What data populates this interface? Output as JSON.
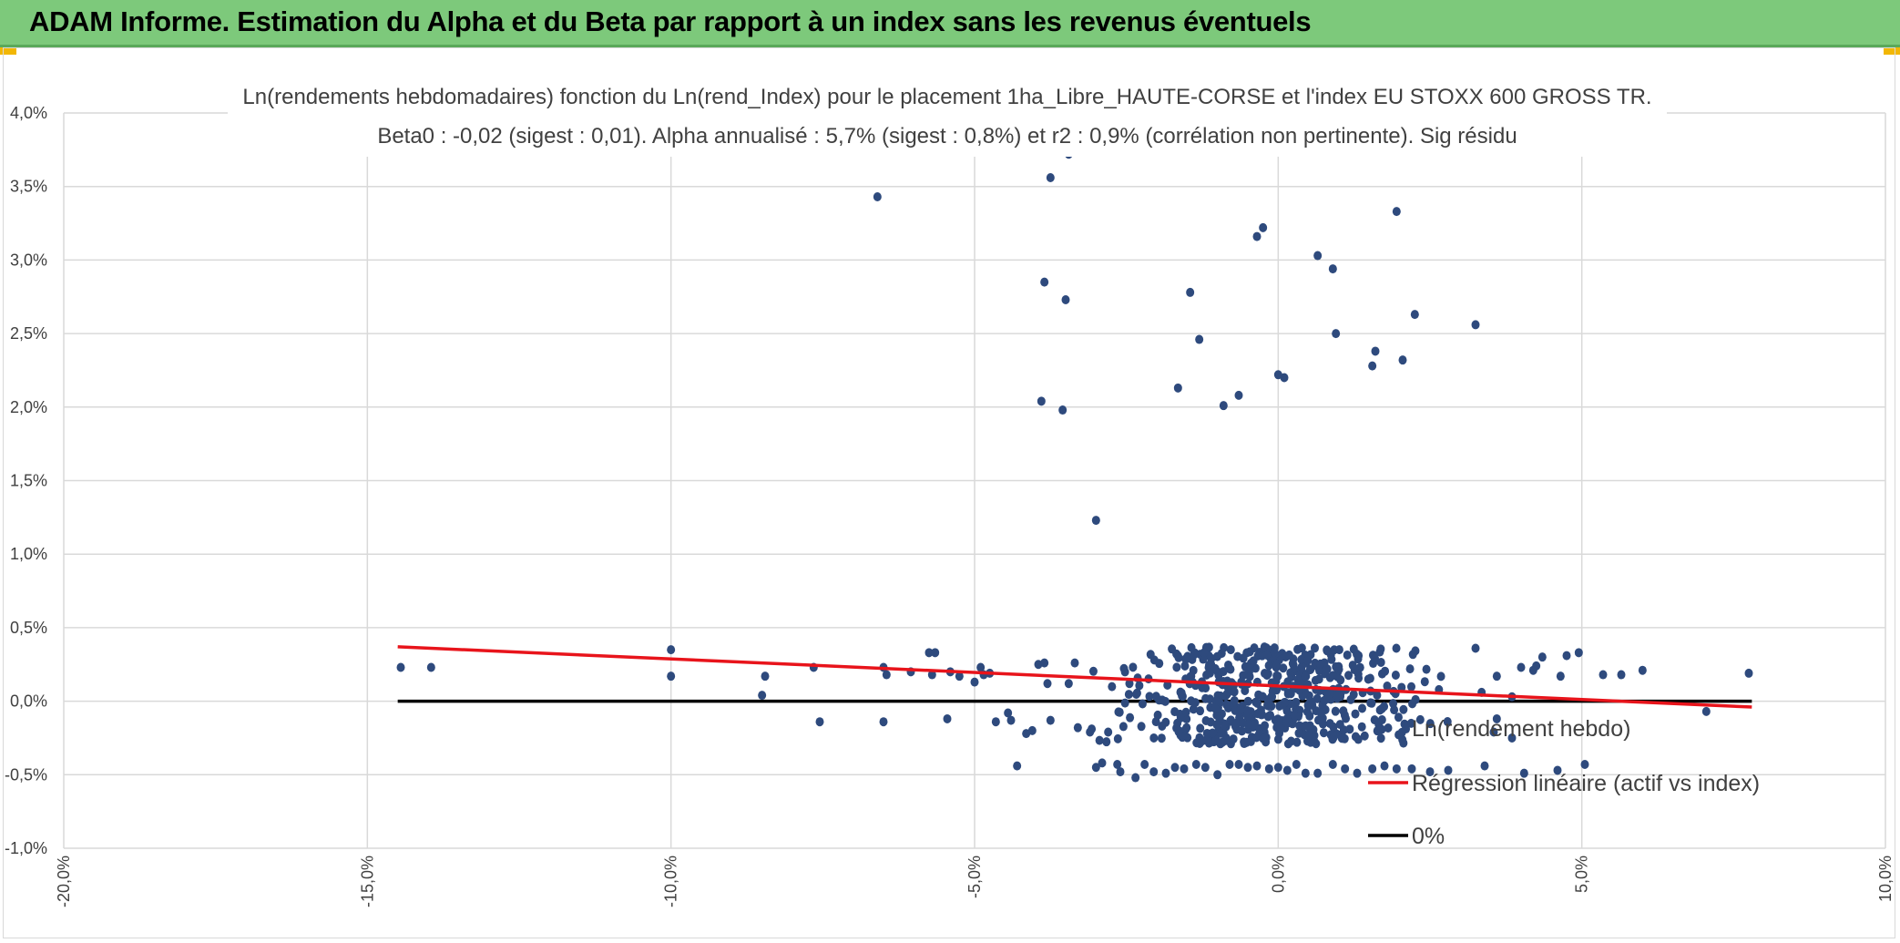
{
  "header": {
    "title": "ADAM Informe. Estimation du Alpha et du Beta par rapport à un index sans les revenus éventuels"
  },
  "colors": {
    "header_bg": "#7dc97b",
    "points": "#2e4a7d",
    "regression": "#e8141b",
    "zero_line": "#000000",
    "grid": "#d9d9d9"
  },
  "chart_data": {
    "type": "scatter",
    "title_line1": "Ln(rendements hebdomadaires) fonction du Ln(rend_Index) pour le placement 1ha_Libre_HAUTE-CORSE et l'index EU STOXX 600 GROSS TR.",
    "title_line2": "Beta0 : -0,02 (sigest : 0,01). Alpha annualisé : 5,7% (sigest : 0,8%) et r2 : 0,9% (corrélation non pertinente). Sig résidu",
    "xlabel": "",
    "ylabel": "",
    "xlim": [
      -0.2,
      0.1
    ],
    "ylim": [
      -0.01,
      0.04
    ],
    "x_ticks": [
      "-20,0%",
      "-15,0%",
      "-10,0%",
      "-5,0%",
      "0,0%",
      "5,0%",
      "10,0%"
    ],
    "y_ticks": [
      "-1,0%",
      "-0,5%",
      "0,0%",
      "0,5%",
      "1,0%",
      "1,5%",
      "2,0%",
      "2,5%",
      "3,0%",
      "3,5%",
      "4,0%"
    ],
    "grid": true,
    "legend_position": "bottom-right",
    "legend": [
      "Ln(rendement hebdo)",
      "Régression linéaire (actif vs index)",
      "0%"
    ],
    "series": [
      {
        "name": "Ln(rendement hebdo)",
        "type": "scatter",
        "points": [
          [
            -0.066,
            0.0343
          ],
          [
            -0.0375,
            0.0356
          ],
          [
            -0.0345,
            0.0372
          ],
          [
            -0.0385,
            0.0285
          ],
          [
            -0.035,
            0.0273
          ],
          [
            -0.039,
            0.0204
          ],
          [
            -0.0355,
            0.0198
          ],
          [
            -0.03,
            0.0123
          ],
          [
            -0.0145,
            0.0278
          ],
          [
            -0.013,
            0.0246
          ],
          [
            -0.0165,
            0.0213
          ],
          [
            -0.009,
            0.0201
          ],
          [
            -0.0065,
            0.0208
          ],
          [
            -0.0035,
            0.0316
          ],
          [
            -0.0025,
            0.0322
          ],
          [
            0.0,
            0.0222
          ],
          [
            0.001,
            0.022
          ],
          [
            0.0065,
            0.0303
          ],
          [
            0.009,
            0.0294
          ],
          [
            0.0095,
            0.025
          ],
          [
            0.0155,
            0.0228
          ],
          [
            0.016,
            0.0238
          ],
          [
            0.0195,
            0.0333
          ],
          [
            0.0205,
            0.0232
          ],
          [
            0.0225,
            0.0263
          ],
          [
            0.0325,
            0.0256
          ],
          [
            -0.1445,
            0.0023
          ],
          [
            -0.1395,
            0.0023
          ],
          [
            -0.1,
            0.0035
          ],
          [
            -0.1,
            0.0017
          ],
          [
            -0.0845,
            0.0017
          ],
          [
            -0.085,
            0.0004
          ],
          [
            -0.0765,
            0.0023
          ],
          [
            -0.0755,
            -0.0014
          ],
          [
            -0.065,
            0.0023
          ],
          [
            -0.0645,
            0.0018
          ],
          [
            -0.065,
            -0.0014
          ],
          [
            -0.0605,
            0.002
          ],
          [
            -0.0575,
            0.0033
          ],
          [
            -0.0565,
            0.0033
          ],
          [
            -0.057,
            0.0018
          ],
          [
            -0.0545,
            -0.0012
          ],
          [
            -0.054,
            0.002
          ],
          [
            -0.0525,
            0.0017
          ],
          [
            -0.05,
            0.0013
          ],
          [
            -0.049,
            0.0023
          ],
          [
            -0.0485,
            0.0018
          ],
          [
            -0.0475,
            0.0019
          ],
          [
            -0.0465,
            -0.0014
          ],
          [
            -0.0445,
            -0.0008
          ],
          [
            -0.044,
            -0.0013
          ],
          [
            -0.043,
            -0.0044
          ],
          [
            -0.0415,
            -0.0022
          ],
          [
            -0.0405,
            -0.002
          ],
          [
            -0.0395,
            0.0025
          ],
          [
            -0.0385,
            0.0026
          ],
          [
            -0.038,
            0.0012
          ],
          [
            -0.0375,
            -0.0013
          ],
          [
            -0.0345,
            0.0012
          ],
          [
            -0.0335,
            0.0026
          ],
          [
            -0.033,
            -0.0018
          ],
          [
            -0.031,
            -0.0021
          ],
          [
            -0.03,
            -0.0045
          ],
          [
            -0.029,
            -0.0042
          ],
          [
            -0.028,
            -0.0021
          ],
          [
            -0.0265,
            -0.0043
          ],
          [
            -0.026,
            -0.0048
          ],
          [
            -0.0245,
            0.0012
          ],
          [
            -0.0235,
            -0.0052
          ],
          [
            -0.022,
            -0.0043
          ],
          [
            -0.0205,
            -0.0048
          ],
          [
            -0.0185,
            -0.0049
          ],
          [
            -0.017,
            -0.0045
          ],
          [
            -0.0155,
            -0.0046
          ],
          [
            -0.0135,
            -0.0043
          ],
          [
            -0.012,
            -0.0045
          ],
          [
            -0.01,
            -0.005
          ],
          [
            -0.008,
            -0.0043
          ],
          [
            -0.0065,
            -0.0043
          ],
          [
            -0.005,
            -0.0045
          ],
          [
            -0.0035,
            -0.0044
          ],
          [
            -0.0015,
            -0.0046
          ],
          [
            0.0,
            -0.0045
          ],
          [
            0.0015,
            -0.0047
          ],
          [
            0.003,
            -0.0043
          ],
          [
            0.0045,
            -0.0049
          ],
          [
            0.0065,
            -0.0049
          ],
          [
            0.009,
            -0.0043
          ],
          [
            0.011,
            -0.0046
          ],
          [
            0.013,
            -0.0049
          ],
          [
            0.0155,
            -0.0046
          ],
          [
            0.0175,
            -0.0044
          ],
          [
            0.0195,
            -0.0046
          ],
          [
            0.022,
            -0.0046
          ],
          [
            0.025,
            -0.0048
          ],
          [
            0.028,
            -0.0047
          ],
          [
            0.034,
            -0.0044
          ],
          [
            0.0405,
            -0.0049
          ],
          [
            0.046,
            -0.0047
          ],
          [
            0.0325,
            0.0036
          ],
          [
            0.036,
            0.0017
          ],
          [
            0.0385,
            0.0003
          ],
          [
            0.04,
            0.0023
          ],
          [
            0.042,
            0.0021
          ],
          [
            0.0425,
            0.0024
          ],
          [
            0.0435,
            0.003
          ],
          [
            0.0465,
            0.0017
          ],
          [
            0.0475,
            0.0031
          ],
          [
            0.0495,
            0.0033
          ],
          [
            0.0535,
            0.0018
          ],
          [
            0.0565,
            0.0018
          ],
          [
            0.06,
            0.0021
          ],
          [
            0.0705,
            -0.0007
          ],
          [
            0.0775,
            0.0019
          ],
          [
            0.0505,
            -0.0043
          ],
          [
            0.0385,
            -0.0025
          ],
          [
            0.0355,
            -0.0021
          ],
          [
            0.0335,
            0.0006
          ],
          [
            0.036,
            -0.0012
          ]
        ]
      },
      {
        "name": "Régression linéaire (actif vs index)",
        "type": "line",
        "x": [
          -0.145,
          0.078
        ],
        "y": [
          0.0037,
          -0.0004
        ]
      },
      {
        "name": "0%",
        "type": "line",
        "x": [
          -0.145,
          0.078
        ],
        "y": [
          0.0,
          0.0
        ]
      }
    ]
  }
}
